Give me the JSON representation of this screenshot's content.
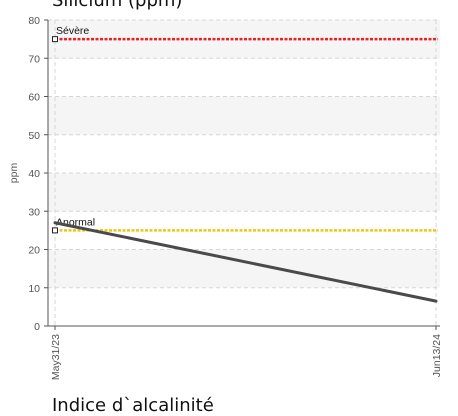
{
  "chart_data": {
    "type": "line",
    "title": "Silicium (ppm)",
    "ylabel": "ppm",
    "xlabel": "",
    "ylim": [
      0,
      80
    ],
    "yticks": [
      0,
      10,
      20,
      30,
      40,
      50,
      60,
      70,
      80
    ],
    "x": [
      "May31/23",
      "Jun13/24"
    ],
    "series": [
      {
        "values": [
          27,
          6.5
        ],
        "color": "#4a4a4a"
      }
    ],
    "thresholds": [
      {
        "name": "Sévère",
        "value": 75,
        "color": "#e8212b"
      },
      {
        "name": "Anormal",
        "value": 25,
        "color": "#f2c414"
      }
    ],
    "grid": true
  },
  "next_chart_title": "Indice d`alcalinité"
}
